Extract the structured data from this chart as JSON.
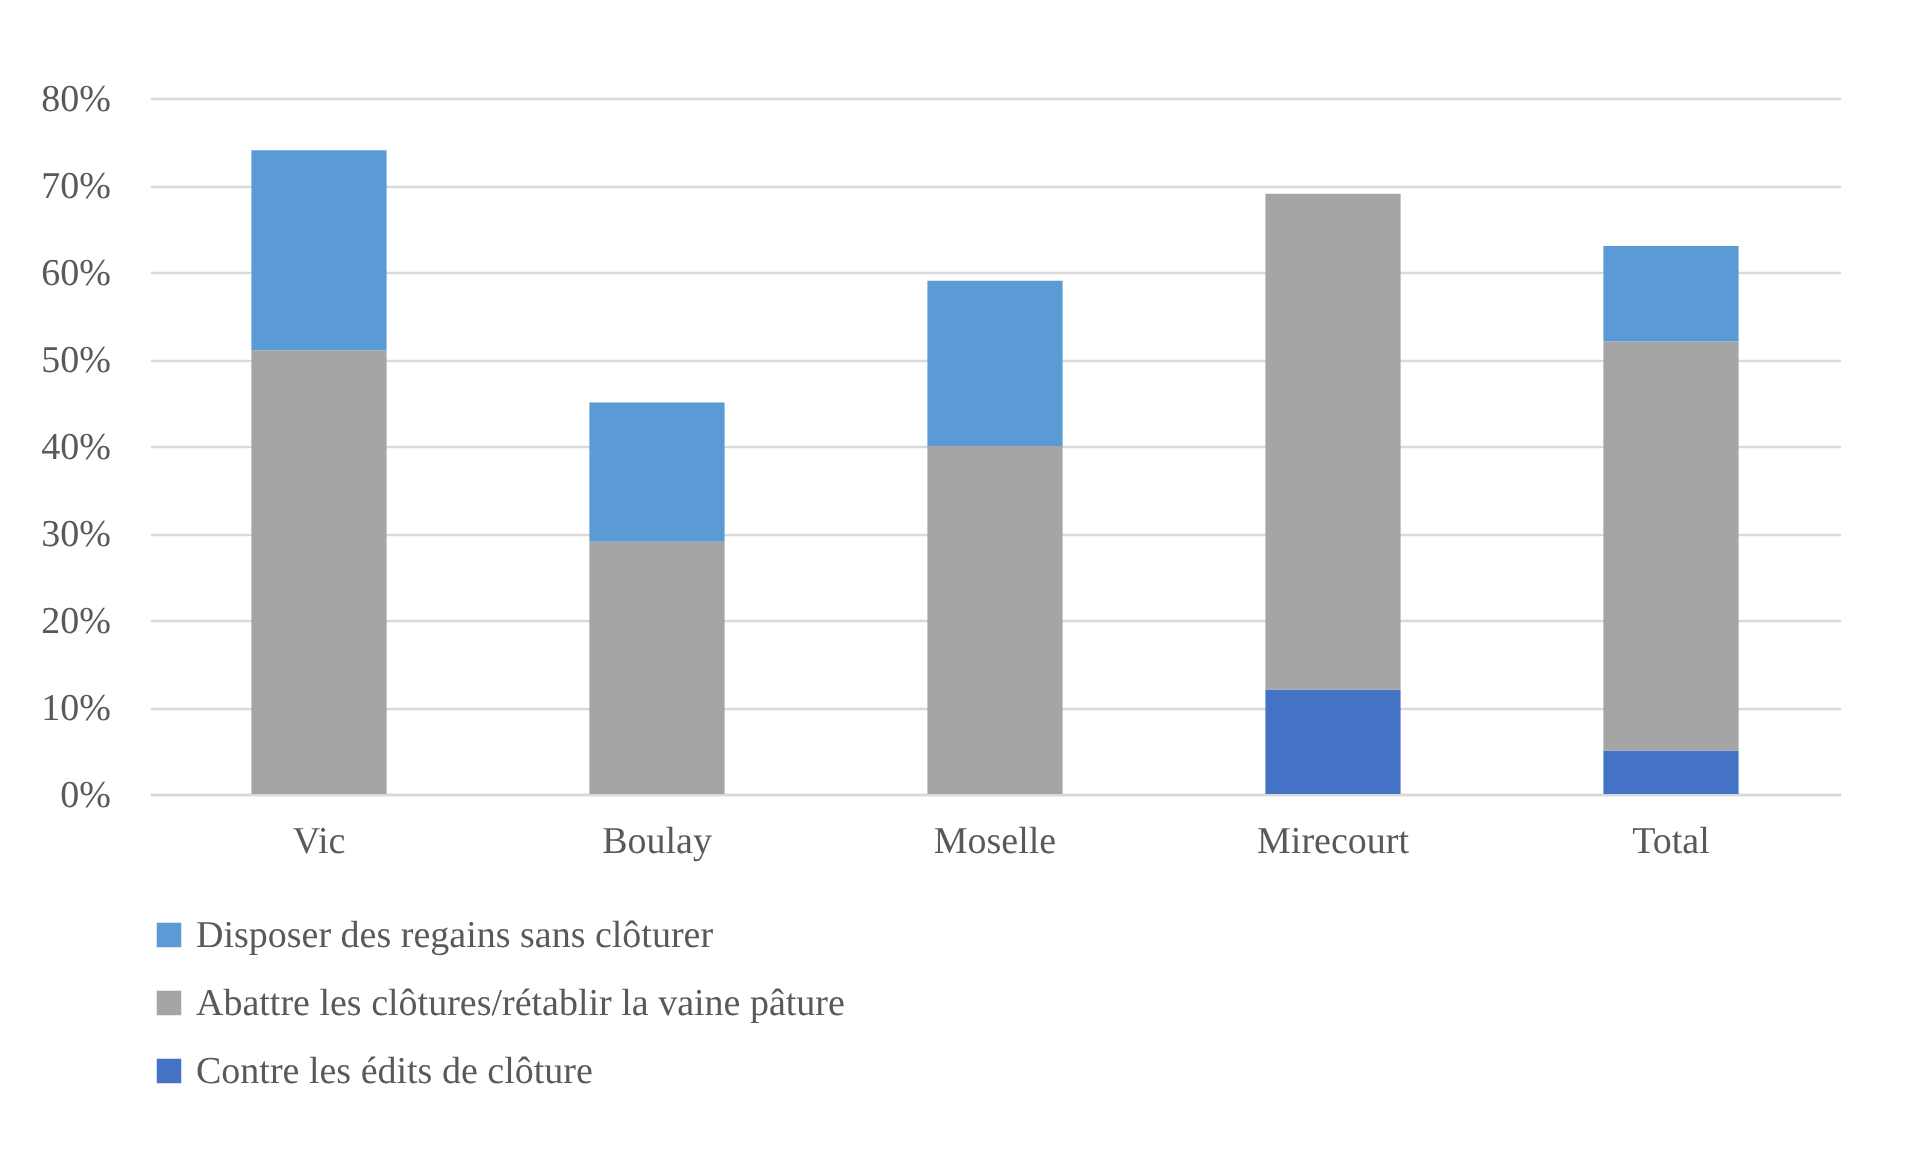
{
  "chart_data": {
    "type": "bar",
    "stacked": true,
    "categories": [
      "Vic",
      "Boulay",
      "Moselle",
      "Mirecourt",
      "Total"
    ],
    "series": [
      {
        "name": "Contre les édits de clôture",
        "color": "#4472c4",
        "values": [
          null,
          null,
          null,
          12,
          5
        ]
      },
      {
        "name": "Abattre les clôtures/rétablir la vaine pâture",
        "color": "#a5a5a5",
        "values": [
          51,
          29,
          40,
          57,
          47
        ]
      },
      {
        "name": "Disposer des regains sans clôturer",
        "color": "#5b9bd5",
        "values": [
          23,
          16,
          19,
          null,
          11
        ]
      }
    ],
    "ylim": [
      0,
      80
    ],
    "yticks": [
      {
        "value": 0,
        "label": "0%"
      },
      {
        "value": 10,
        "label": "10%"
      },
      {
        "value": 20,
        "label": "20%"
      },
      {
        "value": 30,
        "label": "30%"
      },
      {
        "value": 40,
        "label": "40%"
      },
      {
        "value": 50,
        "label": "50%"
      },
      {
        "value": 60,
        "label": "60%"
      },
      {
        "value": 70,
        "label": "70%"
      },
      {
        "value": 80,
        "label": "80%"
      }
    ],
    "grid": "y",
    "legend": "bottom"
  }
}
